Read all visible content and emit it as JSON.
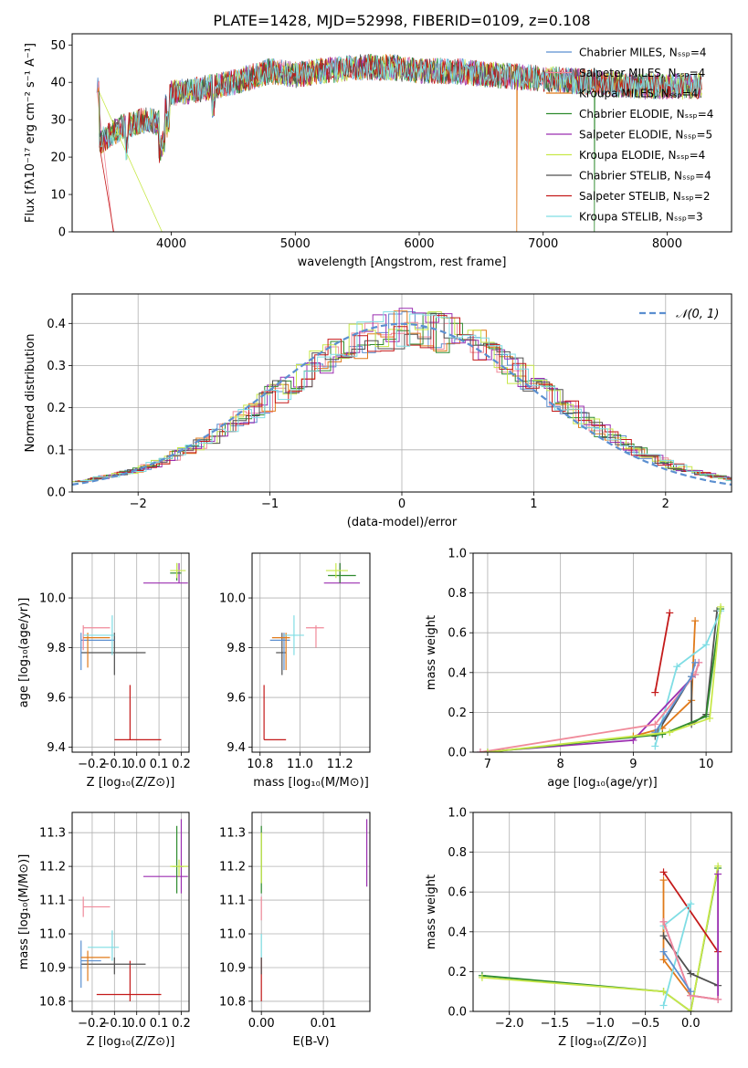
{
  "title": "PLATE=1428, MJD=52998, FIBERID=0109, z=0.108",
  "chart_data": [
    {
      "id": "spectrum",
      "type": "line",
      "xlabel": "wavelength [Angstrom, rest frame]",
      "ylabel": "Flux [fλ10⁻¹⁷ erg cm⁻² s⁻¹ A⁻¹]",
      "xlim": [
        3200,
        8520
      ],
      "ylim": [
        0,
        53
      ],
      "xticks": [
        4000,
        5000,
        6000,
        7000,
        8000
      ],
      "yticks": [
        0,
        10,
        20,
        30,
        40,
        50
      ],
      "grid": false,
      "legend_position": "upper right",
      "continuum_points": [
        [
          3420,
          24
        ],
        [
          3600,
          28
        ],
        [
          3800,
          30
        ],
        [
          3900,
          29
        ],
        [
          4000,
          37
        ],
        [
          4200,
          38
        ],
        [
          4500,
          40
        ],
        [
          4800,
          43
        ],
        [
          5000,
          42
        ],
        [
          5200,
          43
        ],
        [
          5500,
          44
        ],
        [
          5800,
          44
        ],
        [
          6000,
          43
        ],
        [
          6300,
          43
        ],
        [
          6600,
          42
        ],
        [
          7000,
          41
        ],
        [
          7400,
          40
        ],
        [
          7800,
          39
        ],
        [
          8280,
          39
        ]
      ],
      "series": [
        {
          "name": "Chabrier MILES, N_SSP=4",
          "color": "#5b8fd0"
        },
        {
          "name": "Salpeter MILES, N_SSP=4",
          "color": "#f08a9a"
        },
        {
          "name": "Kroupa MILES, N_SSP=4",
          "color": "#e07a1a"
        },
        {
          "name": "Chabrier ELODIE, N_SSP=4",
          "color": "#2e8b2e"
        },
        {
          "name": "Salpeter ELODIE, N_SSP=5",
          "color": "#9b2fb0"
        },
        {
          "name": "Kroupa ELODIE, N_SSP=4",
          "color": "#c8e84a"
        },
        {
          "name": "Chabrier STELIB, N_SSP=4",
          "color": "#505050"
        },
        {
          "name": "Salpeter STELIB, N_SSP=2",
          "color": "#c41a1a"
        },
        {
          "name": "Kroupa STELIB, N_SSP=3",
          "color": "#7fdde4"
        }
      ]
    },
    {
      "id": "residuals",
      "type": "line",
      "xlabel": "(data-model)/error",
      "ylabel": "Normed distribution",
      "xlim": [
        -2.5,
        2.5
      ],
      "ylim": [
        0,
        0.47
      ],
      "xticks": [
        -2,
        -1,
        0,
        1,
        2
      ],
      "yticks": [
        0.0,
        0.1,
        0.2,
        0.3,
        0.4
      ],
      "grid": true,
      "legend_position": "upper right",
      "reference_curve": {
        "name": "𝒩(0, 1)",
        "color": "#5b8fd0",
        "style": "dashed"
      }
    },
    {
      "id": "age-vs-Z",
      "type": "scatter",
      "xlabel": "Z [log₁₀(Z/Z⊙)]",
      "ylabel": "age  [log₁₀(age/yr)]",
      "xlim": [
        -0.29,
        0.235
      ],
      "ylim": [
        9.38,
        10.18
      ],
      "xticks": [
        -0.2,
        -0.1,
        0.0,
        0.1,
        0.2
      ],
      "yticks": [
        9.4,
        9.6,
        9.8,
        10.0
      ],
      "grid": true,
      "errorbars": [
        {
          "color": "#c41a1a",
          "x": -0.03,
          "y": 9.43,
          "x_lo": -0.1,
          "x_hi": 0.11,
          "y_lo": 9.43,
          "y_hi": 9.65
        },
        {
          "color": "#505050",
          "x": -0.1,
          "y": 9.78,
          "x_lo": -0.25,
          "x_hi": 0.04,
          "y_lo": 9.69,
          "y_hi": 9.86
        },
        {
          "color": "#5b8fd0",
          "x": -0.25,
          "y": 9.83,
          "x_lo": -0.25,
          "x_hi": -0.1,
          "y_lo": 9.71,
          "y_hi": 9.86
        },
        {
          "color": "#f08a9a",
          "x": -0.24,
          "y": 9.88,
          "x_lo": -0.24,
          "x_hi": -0.12,
          "y_lo": 9.79,
          "y_hi": 9.89
        },
        {
          "color": "#e07a1a",
          "x": -0.22,
          "y": 9.84,
          "x_lo": -0.24,
          "x_hi": -0.12,
          "y_lo": 9.72,
          "y_hi": 9.86
        },
        {
          "color": "#7fdde4",
          "x": -0.11,
          "y": 9.85,
          "x_lo": -0.24,
          "x_hi": -0.1,
          "y_lo": 9.77,
          "y_hi": 9.93
        },
        {
          "color": "#9b2fb0",
          "x": 0.19,
          "y": 10.06,
          "x_lo": 0.03,
          "x_hi": 0.23,
          "y_lo": 10.06,
          "y_hi": 10.14
        },
        {
          "color": "#2e8b2e",
          "x": 0.18,
          "y": 10.1,
          "x_lo": 0.15,
          "x_hi": 0.2,
          "y_lo": 10.07,
          "y_hi": 10.14
        },
        {
          "color": "#c8e84a",
          "x": 0.18,
          "y": 10.11,
          "x_lo": 0.15,
          "x_hi": 0.22,
          "y_lo": 10.08,
          "y_hi": 10.14
        }
      ]
    },
    {
      "id": "age-vs-mass",
      "type": "scatter",
      "xlabel": "mass [log₁₀(M/M⊙)]",
      "ylabel": "",
      "xlim": [
        10.76,
        11.35
      ],
      "ylim": [
        9.38,
        10.18
      ],
      "xticks": [
        10.8,
        11.0,
        11.2
      ],
      "yticks": [
        9.4,
        9.6,
        9.8,
        10.0
      ],
      "grid": true,
      "errorbars": [
        {
          "color": "#c41a1a",
          "x": 10.82,
          "y": 9.43,
          "x_lo": 10.82,
          "x_hi": 10.93,
          "y_lo": 9.43,
          "y_hi": 9.65
        },
        {
          "color": "#505050",
          "x": 10.91,
          "y": 9.78,
          "x_lo": 10.88,
          "x_hi": 10.93,
          "y_lo": 9.69,
          "y_hi": 9.86
        },
        {
          "color": "#5b8fd0",
          "x": 10.92,
          "y": 9.83,
          "x_lo": 10.85,
          "x_hi": 10.95,
          "y_lo": 9.71,
          "y_hi": 9.86
        },
        {
          "color": "#e07a1a",
          "x": 10.93,
          "y": 9.84,
          "x_lo": 10.86,
          "x_hi": 10.95,
          "y_lo": 9.71,
          "y_hi": 9.86
        },
        {
          "color": "#7fdde4",
          "x": 10.97,
          "y": 9.85,
          "x_lo": 10.92,
          "x_hi": 11.02,
          "y_lo": 9.77,
          "y_hi": 9.93
        },
        {
          "color": "#f08a9a",
          "x": 11.08,
          "y": 9.88,
          "x_lo": 11.03,
          "x_hi": 11.12,
          "y_lo": 9.8,
          "y_hi": 9.89
        },
        {
          "color": "#9b2fb0",
          "x": 11.2,
          "y": 10.06,
          "x_lo": 11.12,
          "x_hi": 11.3,
          "y_lo": 10.06,
          "y_hi": 10.14
        },
        {
          "color": "#2e8b2e",
          "x": 11.2,
          "y": 10.09,
          "x_lo": 11.14,
          "x_hi": 11.28,
          "y_lo": 10.06,
          "y_hi": 10.14
        },
        {
          "color": "#c8e84a",
          "x": 11.18,
          "y": 10.11,
          "x_lo": 11.13,
          "x_hi": 11.24,
          "y_lo": 10.08,
          "y_hi": 10.14
        }
      ]
    },
    {
      "id": "massweight-vs-age",
      "type": "line",
      "xlabel": "age  [log₁₀(age/yr)]",
      "ylabel": "mass weight",
      "xlim": [
        6.8,
        10.35
      ],
      "ylim": [
        0,
        1
      ],
      "xticks": [
        7,
        8,
        9,
        10
      ],
      "yticks": [
        0.0,
        0.2,
        0.4,
        0.6,
        0.8,
        1.0
      ],
      "grid": true,
      "series": [
        {
          "color": "#c41a1a",
          "x": [
            9.3,
            9.5
          ],
          "y": [
            0.3,
            0.7
          ]
        },
        {
          "color": "#e07a1a",
          "x": [
            9.0,
            9.4,
            9.8,
            9.85
          ],
          "y": [
            0.08,
            0.12,
            0.26,
            0.66
          ]
        },
        {
          "color": "#505050",
          "x": [
            9.3,
            9.8,
            9.8,
            10.0,
            10.15
          ],
          "y": [
            0.08,
            0.38,
            0.14,
            0.19,
            0.71
          ]
        },
        {
          "color": "#7fdde4",
          "x": [
            9.3,
            9.6,
            10.0,
            10.2
          ],
          "y": [
            0.03,
            0.43,
            0.54,
            0.71
          ]
        },
        {
          "color": "#9b2fb0",
          "x": [
            6.9,
            9.0,
            9.85,
            9.9
          ],
          "y": [
            0.0,
            0.06,
            0.39,
            0.45
          ]
        },
        {
          "color": "#f08a9a",
          "x": [
            6.9,
            9.3,
            9.85,
            9.9
          ],
          "y": [
            0.0,
            0.14,
            0.39,
            0.45
          ]
        },
        {
          "color": "#5b8fd0",
          "x": [
            9.3,
            9.8,
            9.85
          ],
          "y": [
            0.1,
            0.38,
            0.45
          ]
        },
        {
          "color": "#2e8b2e",
          "x": [
            7.0,
            9.4,
            10.0,
            10.2
          ],
          "y": [
            0.0,
            0.09,
            0.18,
            0.72
          ]
        },
        {
          "color": "#c8e84a",
          "x": [
            7.0,
            9.5,
            10.05,
            10.2
          ],
          "y": [
            0.0,
            0.1,
            0.17,
            0.73
          ]
        }
      ]
    },
    {
      "id": "mass-vs-Z",
      "type": "scatter",
      "xlabel": "Z [log₁₀(Z/Z⊙)]",
      "ylabel": "mass [log₁₀(M/M⊙)]",
      "xlim": [
        -0.29,
        0.235
      ],
      "ylim": [
        10.77,
        11.36
      ],
      "xticks": [
        -0.2,
        -0.1,
        0.0,
        0.1,
        0.2
      ],
      "yticks": [
        10.8,
        10.9,
        11.0,
        11.1,
        11.2,
        11.3
      ],
      "grid": true,
      "errorbars": [
        {
          "color": "#c41a1a",
          "x": -0.03,
          "y": 10.82,
          "x_lo": -0.18,
          "x_hi": 0.11,
          "y_lo": 10.8,
          "y_hi": 10.92
        },
        {
          "color": "#505050",
          "x": -0.1,
          "y": 10.91,
          "x_lo": -0.25,
          "x_hi": 0.04,
          "y_lo": 10.88,
          "y_hi": 10.93
        },
        {
          "color": "#5b8fd0",
          "x": -0.25,
          "y": 10.92,
          "x_lo": -0.25,
          "x_hi": -0.16,
          "y_lo": 10.84,
          "y_hi": 10.98
        },
        {
          "color": "#e07a1a",
          "x": -0.22,
          "y": 10.93,
          "x_lo": -0.25,
          "x_hi": -0.12,
          "y_lo": 10.86,
          "y_hi": 10.95
        },
        {
          "color": "#7fdde4",
          "x": -0.11,
          "y": 10.96,
          "x_lo": -0.22,
          "x_hi": -0.08,
          "y_lo": 10.92,
          "y_hi": 11.01
        },
        {
          "color": "#f08a9a",
          "x": -0.24,
          "y": 11.08,
          "x_lo": -0.24,
          "x_hi": -0.12,
          "y_lo": 11.05,
          "y_hi": 11.11
        },
        {
          "color": "#9b2fb0",
          "x": 0.2,
          "y": 11.17,
          "x_lo": 0.03,
          "x_hi": 0.23,
          "y_lo": 11.12,
          "y_hi": 11.34
        },
        {
          "color": "#2e8b2e",
          "x": 0.18,
          "y": 11.2,
          "x_lo": 0.16,
          "x_hi": 0.21,
          "y_lo": 11.12,
          "y_hi": 11.32
        },
        {
          "color": "#c8e84a",
          "x": 0.19,
          "y": 11.2,
          "x_lo": 0.15,
          "x_hi": 0.23,
          "y_lo": 11.17,
          "y_hi": 11.22
        }
      ]
    },
    {
      "id": "mass-vs-EBV",
      "type": "scatter",
      "xlabel": "E(B-V)",
      "ylabel": "",
      "xlim": [
        -0.0015,
        0.0175
      ],
      "ylim": [
        10.77,
        11.36
      ],
      "xticks": [
        0.0,
        0.01
      ],
      "yticks": [
        10.8,
        10.9,
        11.0,
        11.1,
        11.2,
        11.3
      ],
      "grid": true,
      "errorbars": [
        {
          "color": "#c41a1a",
          "x": 0.0,
          "y": 10.82,
          "x_lo": 0.0,
          "x_hi": 0.0,
          "y_lo": 10.8,
          "y_hi": 10.93
        },
        {
          "color": "#505050",
          "x": 0.0,
          "y": 10.9,
          "x_lo": 0.0,
          "x_hi": 0.0,
          "y_lo": 10.88,
          "y_hi": 10.93
        },
        {
          "color": "#7fdde4",
          "x": 0.0,
          "y": 10.96,
          "x_lo": 0.0,
          "x_hi": 0.0,
          "y_lo": 10.93,
          "y_hi": 11.0
        },
        {
          "color": "#f08a9a",
          "x": 0.0,
          "y": 11.08,
          "x_lo": 0.0,
          "x_hi": 0.0,
          "y_lo": 11.04,
          "y_hi": 11.11
        },
        {
          "color": "#2e8b2e",
          "x": 0.0,
          "y": 11.22,
          "x_lo": 0.0,
          "x_hi": 0.0,
          "y_lo": 11.12,
          "y_hi": 11.32
        },
        {
          "color": "#c8e84a",
          "x": 0.0,
          "y": 11.2,
          "x_lo": 0.0,
          "x_hi": 0.0,
          "y_lo": 11.15,
          "y_hi": 11.3
        },
        {
          "color": "#9b2fb0",
          "x": 0.017,
          "y": 11.24,
          "x_lo": 0.017,
          "x_hi": 0.017,
          "y_lo": 11.14,
          "y_hi": 11.34
        }
      ]
    },
    {
      "id": "massweight-vs-Z",
      "type": "line",
      "xlabel": "Z [log₁₀(Z/Z⊙)]",
      "ylabel": "mass weight",
      "xlim": [
        -2.4,
        0.45
      ],
      "ylim": [
        0,
        1
      ],
      "xticks": [
        -2.0,
        -1.5,
        -1.0,
        -0.5,
        0.0
      ],
      "yticks": [
        0.0,
        0.2,
        0.4,
        0.6,
        0.8,
        1.0
      ],
      "grid": true,
      "series": [
        {
          "color": "#2e8b2e",
          "x": [
            -2.3,
            -0.3,
            0.0,
            0.3
          ],
          "y": [
            0.18,
            0.1,
            0.0,
            0.72
          ]
        },
        {
          "color": "#c8e84a",
          "x": [
            -2.3,
            -0.3,
            0.0,
            0.3
          ],
          "y": [
            0.17,
            0.1,
            0.0,
            0.73
          ]
        },
        {
          "color": "#c41a1a",
          "x": [
            -0.3,
            0.3
          ],
          "y": [
            0.7,
            0.3
          ]
        },
        {
          "color": "#e07a1a",
          "x": [
            -0.3,
            -0.3,
            0.0
          ],
          "y": [
            0.66,
            0.26,
            0.08
          ]
        },
        {
          "color": "#505050",
          "x": [
            -0.3,
            0.0,
            0.3
          ],
          "y": [
            0.38,
            0.19,
            0.13
          ]
        },
        {
          "color": "#7fdde4",
          "x": [
            -0.3,
            0.0,
            -0.3
          ],
          "y": [
            0.03,
            0.54,
            0.43
          ]
        },
        {
          "color": "#9b2fb0",
          "x": [
            -0.3,
            0.0,
            0.3,
            0.3
          ],
          "y": [
            0.45,
            0.08,
            0.06,
            0.69
          ]
        },
        {
          "color": "#f08a9a",
          "x": [
            -0.3,
            0.0,
            0.3
          ],
          "y": [
            0.45,
            0.08,
            0.06
          ]
        },
        {
          "color": "#5b8fd0",
          "x": [
            -0.3,
            0.0
          ],
          "y": [
            0.3,
            0.1
          ]
        }
      ]
    }
  ]
}
